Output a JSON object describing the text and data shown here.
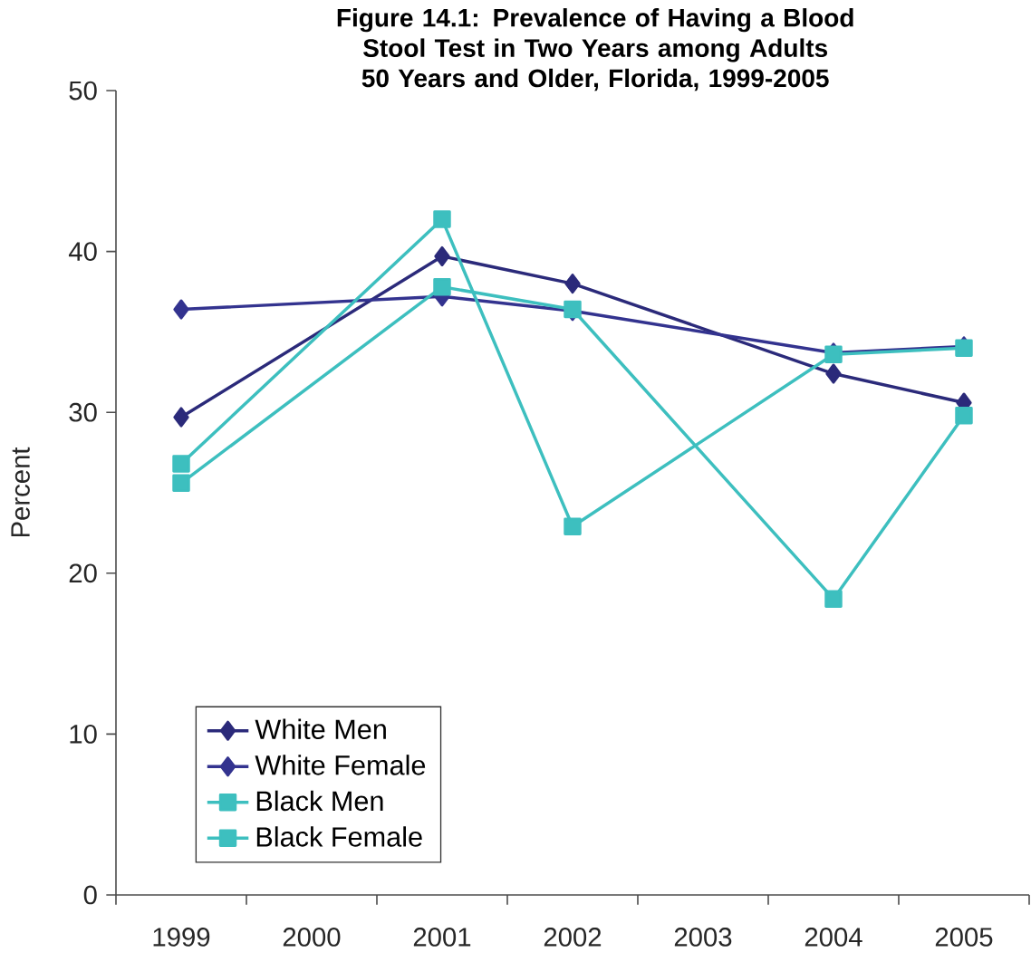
{
  "chart_data": {
    "type": "line",
    "title": "Figure 14.1: Prevalence of Having a Blood Stool Test in Two Years among Adults 50 Years and Older, Florida, 1999-2005",
    "ylabel": "Percent",
    "categories": [
      "1999",
      "2000",
      "2001",
      "2002",
      "2003",
      "2004",
      "2005"
    ],
    "series": [
      {
        "name": "White Men",
        "color": "#2b2a7a",
        "marker": "diamond",
        "values": [
          29.7,
          null,
          39.7,
          38.0,
          null,
          32.4,
          30.6
        ]
      },
      {
        "name": "White Female",
        "color": "#33338f",
        "marker": "diamond",
        "values": [
          36.4,
          null,
          37.2,
          36.3,
          null,
          33.7,
          34.1
        ]
      },
      {
        "name": "Black Men",
        "color": "#3dbfbf",
        "marker": "square",
        "values": [
          26.8,
          null,
          42.0,
          22.9,
          null,
          33.6,
          34.0
        ]
      },
      {
        "name": "Black Female",
        "color": "#3dbfbf",
        "marker": "square",
        "values": [
          25.6,
          null,
          37.8,
          36.4,
          null,
          18.4,
          29.8
        ]
      }
    ],
    "ylim": [
      0,
      50
    ],
    "yticks": [
      0,
      10,
      20,
      30,
      40,
      50
    ],
    "grid": false,
    "legend": "bottom left",
    "line_style": "solid"
  }
}
